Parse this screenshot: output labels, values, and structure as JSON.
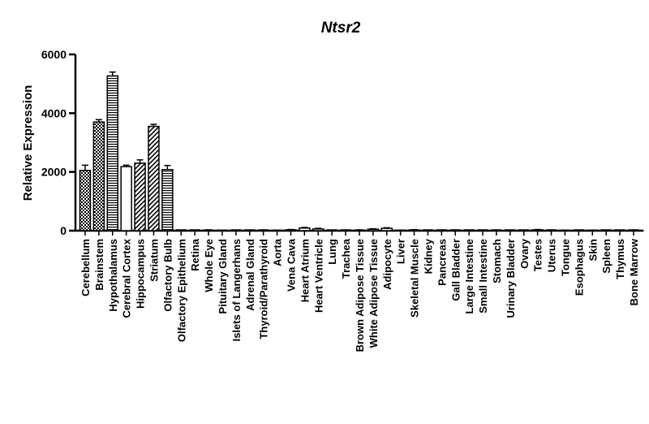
{
  "chart_data": {
    "type": "bar",
    "title": "Ntsr2",
    "xlabel": "",
    "ylabel": "Relative Expression",
    "ylim": [
      0,
      6000
    ],
    "yticks": [
      0,
      2000,
      4000,
      6000
    ],
    "grid": false,
    "categories": [
      "Cerebellum",
      "Brainstem",
      "Hypothalamus",
      "Cerebral Cortex",
      "Hippocampus",
      "Striatum",
      "Olfactory Bulb",
      "Olfactory Epithelium",
      "Retina",
      "Whole Eye",
      "Pituitary Gland",
      "Islets of Langerhans",
      "Adrenal Gland",
      "Thyroid/Parathyroid",
      "Aorta",
      "Vena Cava",
      "Heart Atrium",
      "Heart Ventricle",
      "Lung",
      "Trachea",
      "Brown Adipose Tissue",
      "White Adipose Tissue",
      "Adipocyte",
      "Liver",
      "Skeletal Muscle",
      "Kidney",
      "Pancreas",
      "Gall Bladder",
      "Large Intestine",
      "Small Intestine",
      "Stomach",
      "Urinary Bladder",
      "Ovary",
      "Testes",
      "Uterus",
      "Tongue",
      "Esophagus",
      "Skin",
      "Spleen",
      "Thymus",
      "Bone Marrow"
    ],
    "values": [
      2050,
      3700,
      5270,
      2180,
      2300,
      3550,
      2080,
      0,
      10,
      20,
      15,
      10,
      5,
      10,
      15,
      30,
      90,
      60,
      10,
      5,
      20,
      50,
      80,
      15,
      25,
      10,
      5,
      5,
      5,
      10,
      5,
      5,
      10,
      30,
      10,
      15,
      10,
      15,
      5,
      10,
      10
    ],
    "errors": [
      180,
      80,
      130,
      50,
      110,
      70,
      140,
      0,
      5,
      10,
      5,
      5,
      3,
      5,
      5,
      10,
      20,
      20,
      5,
      3,
      10,
      15,
      20,
      5,
      10,
      5,
      3,
      3,
      3,
      5,
      3,
      3,
      5,
      10,
      5,
      5,
      5,
      5,
      3,
      5,
      5
    ],
    "patterns": [
      "checker",
      "checker",
      "hstripe",
      "white",
      "diagonal",
      "diagonal",
      "hstripe",
      "white",
      "white",
      "white",
      "white",
      "white",
      "white",
      "white",
      "white",
      "white",
      "white",
      "white",
      "white",
      "white",
      "white",
      "white",
      "white",
      "white",
      "white",
      "white",
      "white",
      "white",
      "white",
      "white",
      "white",
      "white",
      "white",
      "white",
      "white",
      "white",
      "white",
      "white",
      "white",
      "white",
      "white"
    ],
    "colors": {
      "bar_stroke": "#000000",
      "fill": "#ffffff",
      "axis": "#000000"
    }
  }
}
